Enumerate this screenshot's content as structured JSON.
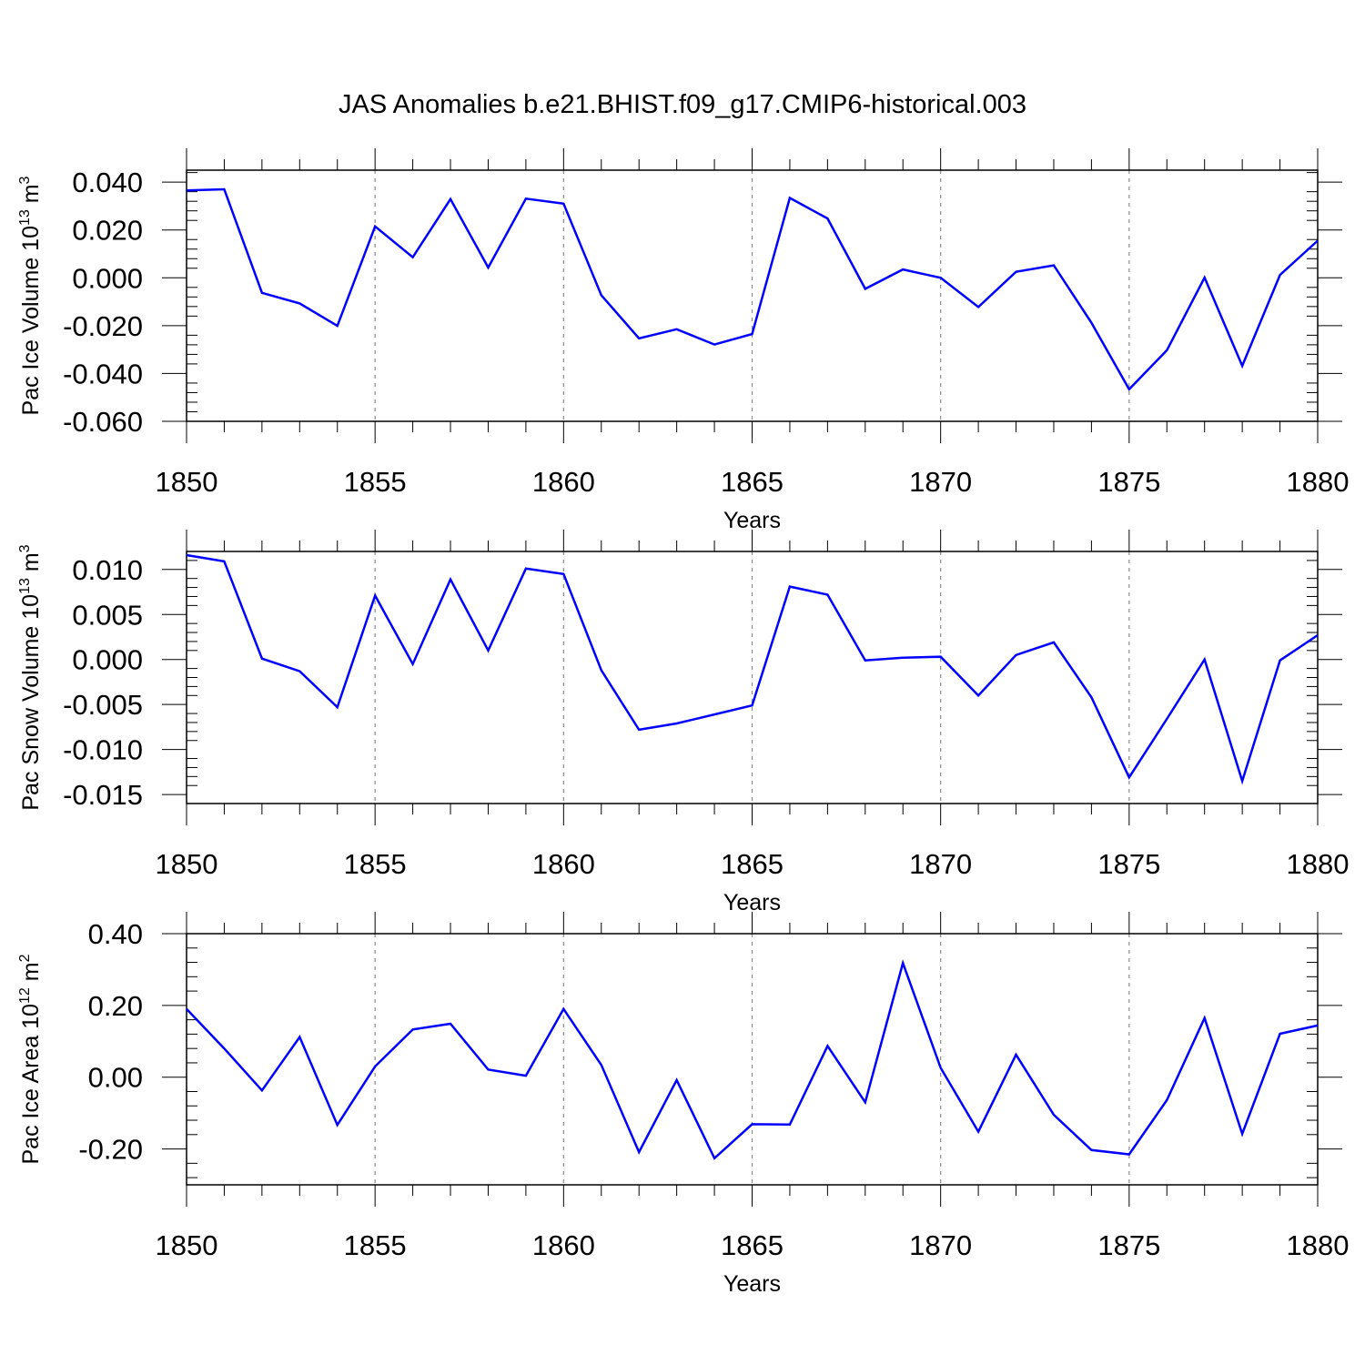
{
  "title": "JAS Anomalies b.e21.BHIST.f09_g17.CMIP6-historical.003",
  "colors": {
    "series": "#0000ff",
    "axis": "#000000",
    "grid": "#8c8c8c"
  },
  "chart_data": [
    {
      "type": "line",
      "ylabel": {
        "text": "Pac Ice Volume 10",
        "exp": "13",
        "unit": " m",
        "unit_exp": "3"
      },
      "xlabel": "Years",
      "xlim": [
        1850,
        1880
      ],
      "ylim": [
        -0.06,
        0.045
      ],
      "yticks": [
        0.04,
        0.02,
        0.0,
        -0.02,
        -0.04,
        -0.06
      ],
      "ytick_labels": [
        "0.040",
        "0.020",
        "0.000",
        "-0.020",
        "-0.040",
        "-0.060"
      ],
      "xticks": [
        1850,
        1855,
        1860,
        1865,
        1870,
        1875,
        1880
      ],
      "xtick_labels": [
        "1850",
        "1855",
        "1860",
        "1865",
        "1870",
        "1875",
        "1880"
      ],
      "grid": "vertical dashed at 1855, 1860, 1865, 1870, 1875",
      "x": [
        1850,
        1851,
        1852,
        1853,
        1854,
        1855,
        1856,
        1857,
        1858,
        1859,
        1860,
        1861,
        1862,
        1863,
        1864,
        1865,
        1866,
        1867,
        1868,
        1869,
        1870,
        1871,
        1872,
        1873,
        1874,
        1875,
        1876,
        1877,
        1878,
        1879,
        1880
      ],
      "values": [
        0.0365,
        0.037,
        -0.0063,
        -0.0107,
        -0.0201,
        0.0215,
        0.0086,
        0.0329,
        0.0043,
        0.0331,
        0.031,
        -0.0073,
        -0.0253,
        -0.0215,
        -0.0279,
        -0.0235,
        0.0334,
        0.0248,
        -0.0046,
        0.0035,
        0.0,
        -0.0122,
        0.0025,
        0.0052,
        -0.0188,
        -0.0466,
        -0.0303,
        0.0001,
        -0.0368,
        0.0012,
        0.0155
      ]
    },
    {
      "type": "line",
      "ylabel": {
        "text": "Pac Snow Volume 10",
        "exp": "13",
        "unit": " m",
        "unit_exp": "3"
      },
      "xlabel": "Years",
      "xlim": [
        1850,
        1880
      ],
      "ylim": [
        -0.016,
        0.012
      ],
      "yticks": [
        0.01,
        0.005,
        0.0,
        -0.005,
        -0.01,
        -0.015
      ],
      "ytick_labels": [
        "0.010",
        "0.005",
        "0.000",
        "-0.005",
        "-0.010",
        "-0.015"
      ],
      "xticks": [
        1850,
        1855,
        1860,
        1865,
        1870,
        1875,
        1880
      ],
      "xtick_labels": [
        "1850",
        "1855",
        "1860",
        "1865",
        "1870",
        "1875",
        "1880"
      ],
      "grid": "vertical dashed at 1855, 1860, 1865, 1870, 1875",
      "x": [
        1850,
        1851,
        1852,
        1853,
        1854,
        1855,
        1856,
        1857,
        1858,
        1859,
        1860,
        1861,
        1862,
        1863,
        1864,
        1865,
        1866,
        1867,
        1868,
        1869,
        1870,
        1871,
        1872,
        1873,
        1874,
        1875,
        1876,
        1877,
        1878,
        1879,
        1880
      ],
      "values": [
        0.0116,
        0.0109,
        0.0001,
        -0.0013,
        -0.0053,
        0.0071,
        -0.0005,
        0.0089,
        0.001,
        0.0101,
        0.0095,
        -0.0012,
        -0.0078,
        -0.0071,
        -0.0061,
        -0.0051,
        0.0081,
        0.0072,
        -0.0001,
        0.0002,
        0.0003,
        -0.004,
        0.0005,
        0.0019,
        -0.0042,
        -0.0131,
        -0.0066,
        0.0,
        -0.0135,
        -0.0001,
        0.0027
      ]
    },
    {
      "type": "line",
      "ylabel": {
        "text": "Pac Ice Area 10",
        "exp": "12",
        "unit": " m",
        "unit_exp": "2"
      },
      "xlabel": "Years",
      "xlim": [
        1850,
        1880
      ],
      "ylim": [
        -0.3,
        0.4
      ],
      "yticks": [
        0.4,
        0.2,
        0.0,
        -0.2
      ],
      "ytick_labels": [
        "0.40",
        "0.20",
        "0.00",
        "-0.20"
      ],
      "xticks": [
        1850,
        1855,
        1860,
        1865,
        1870,
        1875,
        1880
      ],
      "xtick_labels": [
        "1850",
        "1855",
        "1860",
        "1865",
        "1870",
        "1875",
        "1880"
      ],
      "grid": "vertical dashed at 1855, 1860, 1865, 1870, 1875",
      "x": [
        1850,
        1851,
        1852,
        1853,
        1854,
        1855,
        1856,
        1857,
        1858,
        1859,
        1860,
        1861,
        1862,
        1863,
        1864,
        1865,
        1866,
        1867,
        1868,
        1869,
        1870,
        1871,
        1872,
        1873,
        1874,
        1875,
        1876,
        1877,
        1878,
        1879,
        1880
      ],
      "values": [
        0.19,
        0.08,
        -0.037,
        0.112,
        -0.133,
        0.03,
        0.133,
        0.149,
        0.021,
        0.004,
        0.19,
        0.034,
        -0.209,
        -0.008,
        -0.226,
        -0.131,
        -0.132,
        0.087,
        -0.07,
        0.318,
        0.026,
        -0.152,
        0.063,
        -0.105,
        -0.203,
        -0.215,
        -0.064,
        0.165,
        -0.158,
        0.121,
        0.144
      ]
    }
  ]
}
